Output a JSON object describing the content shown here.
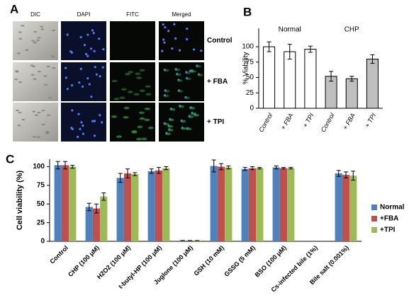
{
  "panel_labels": [
    "A",
    "B",
    "C"
  ],
  "panel_a": {
    "columns": [
      "DIC",
      "DAPI",
      "FITC",
      "Merged"
    ],
    "rows": [
      "Control",
      "+ FBA",
      "+ TPI"
    ]
  },
  "chart_data": [
    {
      "type": "bar",
      "y_label": "% Viability",
      "group_labels": [
        "Normal",
        "CHP"
      ],
      "categories": [
        "Control",
        "+ FBA",
        "+ TPI",
        "Control",
        "+ FBA",
        "+ TPI"
      ],
      "values": [
        100,
        92,
        96,
        52,
        48,
        80
      ],
      "errors": [
        8,
        12,
        5,
        8,
        4,
        7
      ],
      "colors": [
        "#ffffff",
        "#ffffff",
        "#ffffff",
        "#bfbfbf",
        "#bfbfbf",
        "#bfbfbf"
      ],
      "ylim": [
        0,
        130
      ],
      "yticks": [
        0,
        25,
        50,
        75,
        100
      ]
    },
    {
      "type": "bar",
      "y_label": "Cell viability (%)",
      "categories": [
        "Control",
        "CHP (100 μM)",
        "H2O2 (100 μM)",
        "t-butyl-HP (100 μM)",
        "Juglone (100 μM)",
        "GSH (10 mM)",
        "GSSG (5 mM)",
        "BSO (100 μM)",
        "Cs-infected bile (1%)",
        "Bile salt (0.001%)"
      ],
      "series": [
        {
          "name": "Normal",
          "color": "#4f81bd",
          "values": [
            102,
            46,
            85,
            94,
            1,
            101,
            97,
            99,
            null,
            91
          ],
          "errors": [
            5,
            5,
            6,
            3,
            0,
            8,
            2,
            2,
            null,
            4
          ]
        },
        {
          "name": "+FBA",
          "color": "#c0504d",
          "values": [
            102,
            44,
            91,
            95,
            1,
            100,
            98,
            98,
            null,
            89
          ],
          "errors": [
            5,
            6,
            6,
            4,
            0,
            4,
            2,
            1,
            null,
            4
          ]
        },
        {
          "name": "+TPI",
          "color": "#9bbb59",
          "values": [
            100,
            60,
            90,
            98,
            1,
            99,
            98,
            98,
            null,
            88
          ],
          "errors": [
            2,
            5,
            2,
            2,
            0,
            2,
            1,
            1,
            null,
            6
          ]
        }
      ],
      "ylim": [
        0,
        110
      ],
      "yticks": [
        0,
        25,
        50,
        75,
        100
      ],
      "legend": "right"
    }
  ]
}
